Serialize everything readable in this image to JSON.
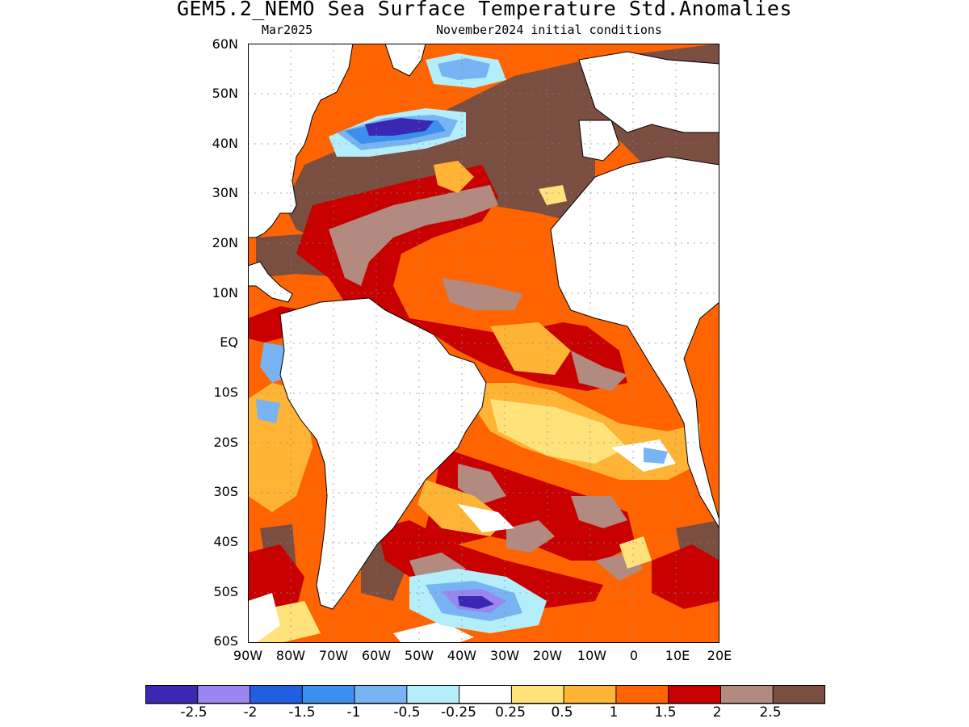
{
  "title": "GEM5.2_NEMO Sea Surface Temperature Std.Anomalies",
  "subtitle_left": "Mar2025",
  "subtitle_right": "November2024 initial conditions",
  "lat_labels": [
    "60N",
    "50N",
    "40N",
    "30N",
    "20N",
    "10N",
    "EQ",
    "10S",
    "20S",
    "30S",
    "40S",
    "50S",
    "60S"
  ],
  "lon_labels": [
    "90W",
    "80W",
    "70W",
    "60W",
    "50W",
    "40W",
    "30W",
    "20W",
    "10W",
    "0",
    "10E",
    "20E"
  ],
  "region": {
    "lon_range": [
      -90,
      20
    ],
    "lat_range": [
      -60,
      60
    ],
    "grid": "dotted 10-degree graticule"
  },
  "colorbar": {
    "labels": [
      "-2.5",
      "-2",
      "-1.5",
      "-1",
      "-0.5",
      "-0.25",
      "0.25",
      "0.5",
      "1",
      "1.5",
      "2",
      "2.5"
    ],
    "colors": [
      "#3a28b4",
      "#9a86f0",
      "#1f5fe0",
      "#3c8fee",
      "#78b4f4",
      "#b4eefa",
      "#ffffff",
      "#ffe27a",
      "#ffb435",
      "#ff6400",
      "#c80000",
      "#b28a80",
      "#7a4e40"
    ]
  }
}
